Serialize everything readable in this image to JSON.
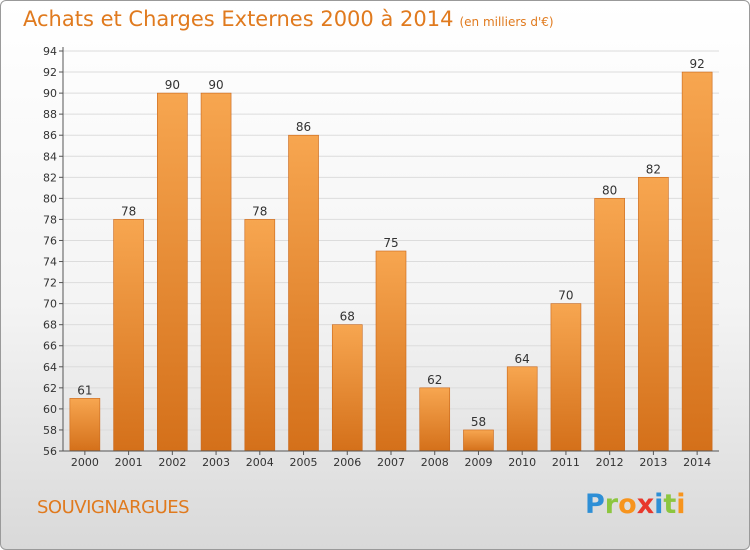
{
  "header": {
    "title": "Achats et Charges Externes 2000 à 2014",
    "unit": "(en milliers d'€)"
  },
  "footer": {
    "commune": "SOUVIGNARGUES",
    "logo_letters": [
      {
        "ch": "P",
        "color": "#2e8fd6"
      },
      {
        "ch": "r",
        "color": "#8cc63f"
      },
      {
        "ch": "o",
        "color": "#f7941d"
      },
      {
        "ch": "x",
        "color": "#e8382c"
      },
      {
        "ch": "i",
        "color": "#2e8fd6"
      },
      {
        "ch": "t",
        "color": "#8cc63f"
      },
      {
        "ch": "i",
        "color": "#f7941d"
      }
    ]
  },
  "colors": {
    "bar_light": "#f7a650",
    "bar_dark": "#d4701a",
    "text": "#333333",
    "accent": "#e07a1e"
  },
  "chart_data": {
    "type": "bar",
    "categories": [
      "2000",
      "2001",
      "2002",
      "2003",
      "2004",
      "2005",
      "2006",
      "2007",
      "2008",
      "2009",
      "2010",
      "2011",
      "2012",
      "2013",
      "2014"
    ],
    "values": [
      61,
      78,
      90,
      90,
      78,
      86,
      68,
      75,
      62,
      58,
      64,
      70,
      80,
      82,
      92
    ],
    "title": "Achats et Charges Externes 2000 à 2014",
    "ylim": [
      56,
      94
    ],
    "yticks": [
      56,
      58,
      60,
      62,
      64,
      66,
      68,
      70,
      72,
      74,
      76,
      78,
      80,
      82,
      84,
      86,
      88,
      90,
      92,
      94
    ],
    "grid": true,
    "legend": "none"
  }
}
